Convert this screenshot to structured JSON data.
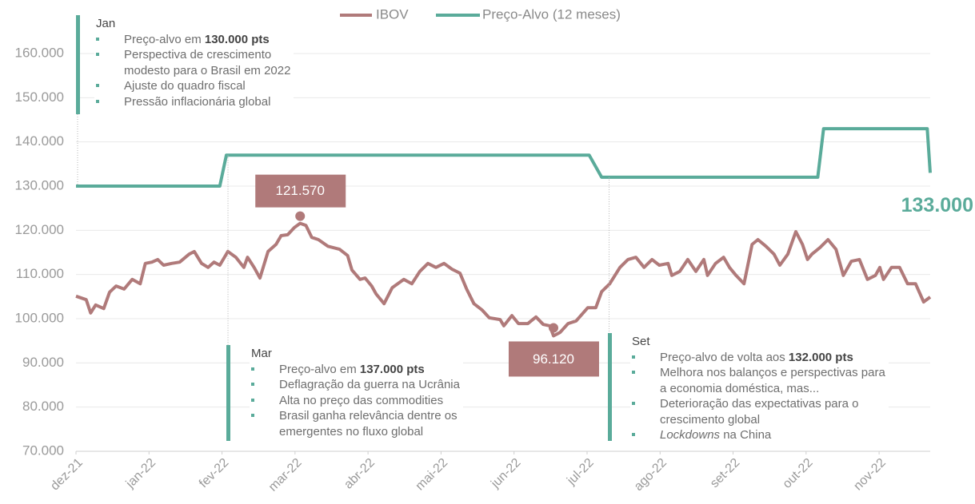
{
  "chart_data": {
    "type": "line",
    "xlim": [
      0,
      11.7
    ],
    "xticks": [
      {
        "value": 0,
        "label": "dez-21"
      },
      {
        "value": 1,
        "label": "jan-22"
      },
      {
        "value": 2,
        "label": "fev-22"
      },
      {
        "value": 3,
        "label": "mar-22"
      },
      {
        "value": 4,
        "label": "abr-22"
      },
      {
        "value": 5,
        "label": "mai-22"
      },
      {
        "value": 6,
        "label": "jun-22"
      },
      {
        "value": 7,
        "label": "jul-22"
      },
      {
        "value": 8,
        "label": "ago-22"
      },
      {
        "value": 9,
        "label": "set-22"
      },
      {
        "value": 10,
        "label": "out-22"
      },
      {
        "value": 11,
        "label": "nov-22"
      }
    ],
    "ylim": [
      70000,
      160000
    ],
    "yticks": [
      {
        "value": 70000,
        "label": "70.000"
      },
      {
        "value": 80000,
        "label": "80.000"
      },
      {
        "value": 90000,
        "label": "90.000"
      },
      {
        "value": 100000,
        "label": "100.000"
      },
      {
        "value": 110000,
        "label": "110.000"
      },
      {
        "value": 120000,
        "label": "120.000"
      },
      {
        "value": 130000,
        "label": "130.000"
      },
      {
        "value": 140000,
        "label": "140.000"
      },
      {
        "value": 150000,
        "label": "150.000"
      },
      {
        "value": 160000,
        "label": "160.000"
      }
    ],
    "grid": true,
    "series": [
      {
        "name": "IBOV",
        "color": "#b07a7a",
        "x": [
          0,
          0.14,
          0.2,
          0.27,
          0.38,
          0.46,
          0.55,
          0.66,
          0.77,
          0.88,
          0.95,
          1.04,
          1.12,
          1.2,
          1.31,
          1.42,
          1.55,
          1.62,
          1.72,
          1.81,
          1.89,
          1.97,
          2.08,
          2.19,
          2.3,
          2.35,
          2.44,
          2.52,
          2.63,
          2.74,
          2.81,
          2.9,
          2.99,
          3.07,
          3.15,
          3.23,
          3.32,
          3.45,
          3.61,
          3.72,
          3.78,
          3.89,
          3.96,
          4.05,
          4.11,
          4.22,
          4.33,
          4.49,
          4.6,
          4.71,
          4.82,
          4.93,
          5.04,
          5.15,
          5.26,
          5.35,
          5.45,
          5.56,
          5.66,
          5.81,
          5.86,
          5.97,
          6.06,
          6.19,
          6.3,
          6.4,
          6.49,
          6.54,
          6.63,
          6.74,
          6.85,
          7.01,
          7.12,
          7.2,
          7.31,
          7.45,
          7.56,
          7.67,
          7.78,
          7.89,
          7.99,
          8.11,
          8.16,
          8.27,
          8.38,
          8.49,
          8.6,
          8.65,
          8.76,
          8.87,
          8.95,
          9.04,
          9.15,
          9.26,
          9.34,
          9.45,
          9.56,
          9.64,
          9.75,
          9.86,
          9.95,
          10.02,
          10.08,
          10.19,
          10.3,
          10.41,
          10.51,
          10.62,
          10.73,
          10.84,
          10.95,
          11.01,
          11.06,
          11.17,
          11.28,
          11.39,
          11.5,
          11.61,
          11.7
        ],
        "values": [
          105100,
          104300,
          101300,
          103100,
          102300,
          106000,
          107400,
          106700,
          108900,
          107900,
          112500,
          112800,
          113400,
          112100,
          112500,
          112800,
          114600,
          115200,
          112500,
          111600,
          112800,
          112100,
          115200,
          113900,
          111600,
          113900,
          111600,
          109200,
          115200,
          116800,
          118800,
          119000,
          120600,
          121570,
          121100,
          118400,
          117900,
          116400,
          115700,
          114300,
          111000,
          108900,
          109200,
          107400,
          105600,
          103400,
          107000,
          108900,
          107900,
          110700,
          112500,
          111600,
          112500,
          111200,
          110300,
          106700,
          103400,
          102000,
          100200,
          99800,
          98400,
          100700,
          98900,
          98900,
          100400,
          98700,
          98400,
          96120,
          96900,
          98900,
          99500,
          102500,
          102500,
          106100,
          107900,
          111600,
          113400,
          113900,
          111600,
          113400,
          112100,
          112500,
          109800,
          110700,
          113400,
          110700,
          113400,
          109800,
          112500,
          113900,
          111600,
          109800,
          107900,
          116800,
          117900,
          116400,
          114600,
          112100,
          114600,
          119700,
          116800,
          113400,
          114600,
          116100,
          117900,
          115700,
          109800,
          113000,
          113400,
          108900,
          109800,
          111600,
          108900,
          111600,
          111600,
          107900,
          107900,
          103800,
          104900
        ]
      },
      {
        "name": "Preço-Alvo (12 meses)",
        "color": "#5aab9a",
        "x": [
          0,
          1.97,
          2.06,
          7.03,
          7.2,
          10.16,
          10.24,
          11.66,
          11.7
        ],
        "values": [
          130000,
          130000,
          137000,
          137000,
          132000,
          132000,
          143000,
          143000,
          133000
        ],
        "end_label": "133.000"
      }
    ],
    "callouts": [
      {
        "x": 3.07,
        "value": 121570,
        "label": "121.570"
      },
      {
        "x": 6.54,
        "value": 96120,
        "label": "96.120"
      }
    ],
    "annotations": [
      {
        "x": 0,
        "title": "Jan",
        "bullets": [
          {
            "text": "Preço-alvo em ",
            "bold": "130.000 pts"
          },
          {
            "lines": [
              "Perspectiva de crescimento",
              "modesto para o Brasil em 2022"
            ]
          },
          {
            "text": "Ajuste do quadro fiscal"
          },
          {
            "text": "Pressão inflacionária global"
          }
        ]
      },
      {
        "x": 2.06,
        "title": "Mar",
        "bullets": [
          {
            "text": "Preço-alvo em ",
            "bold": "137.000 pts"
          },
          {
            "text": "Deflagração da guerra na Ucrânia"
          },
          {
            "text": "Alta no preço das commodities"
          },
          {
            "lines": [
              "Brasil ganha relevância dentre os",
              "emergentes no fluxo global"
            ]
          }
        ]
      },
      {
        "x": 7.28,
        "title": "Set",
        "bullets": [
          {
            "text": "Preço-alvo de volta aos ",
            "bold": "132.000 pts"
          },
          {
            "lines": [
              "Melhora nos balanços e perspectivas para",
              "a economia doméstica, mas..."
            ]
          },
          {
            "lines": [
              "Deterioração das expectativas para o",
              "crescimento global"
            ]
          },
          {
            "italic": "Lockdowns",
            "text": " na China"
          }
        ]
      }
    ]
  }
}
